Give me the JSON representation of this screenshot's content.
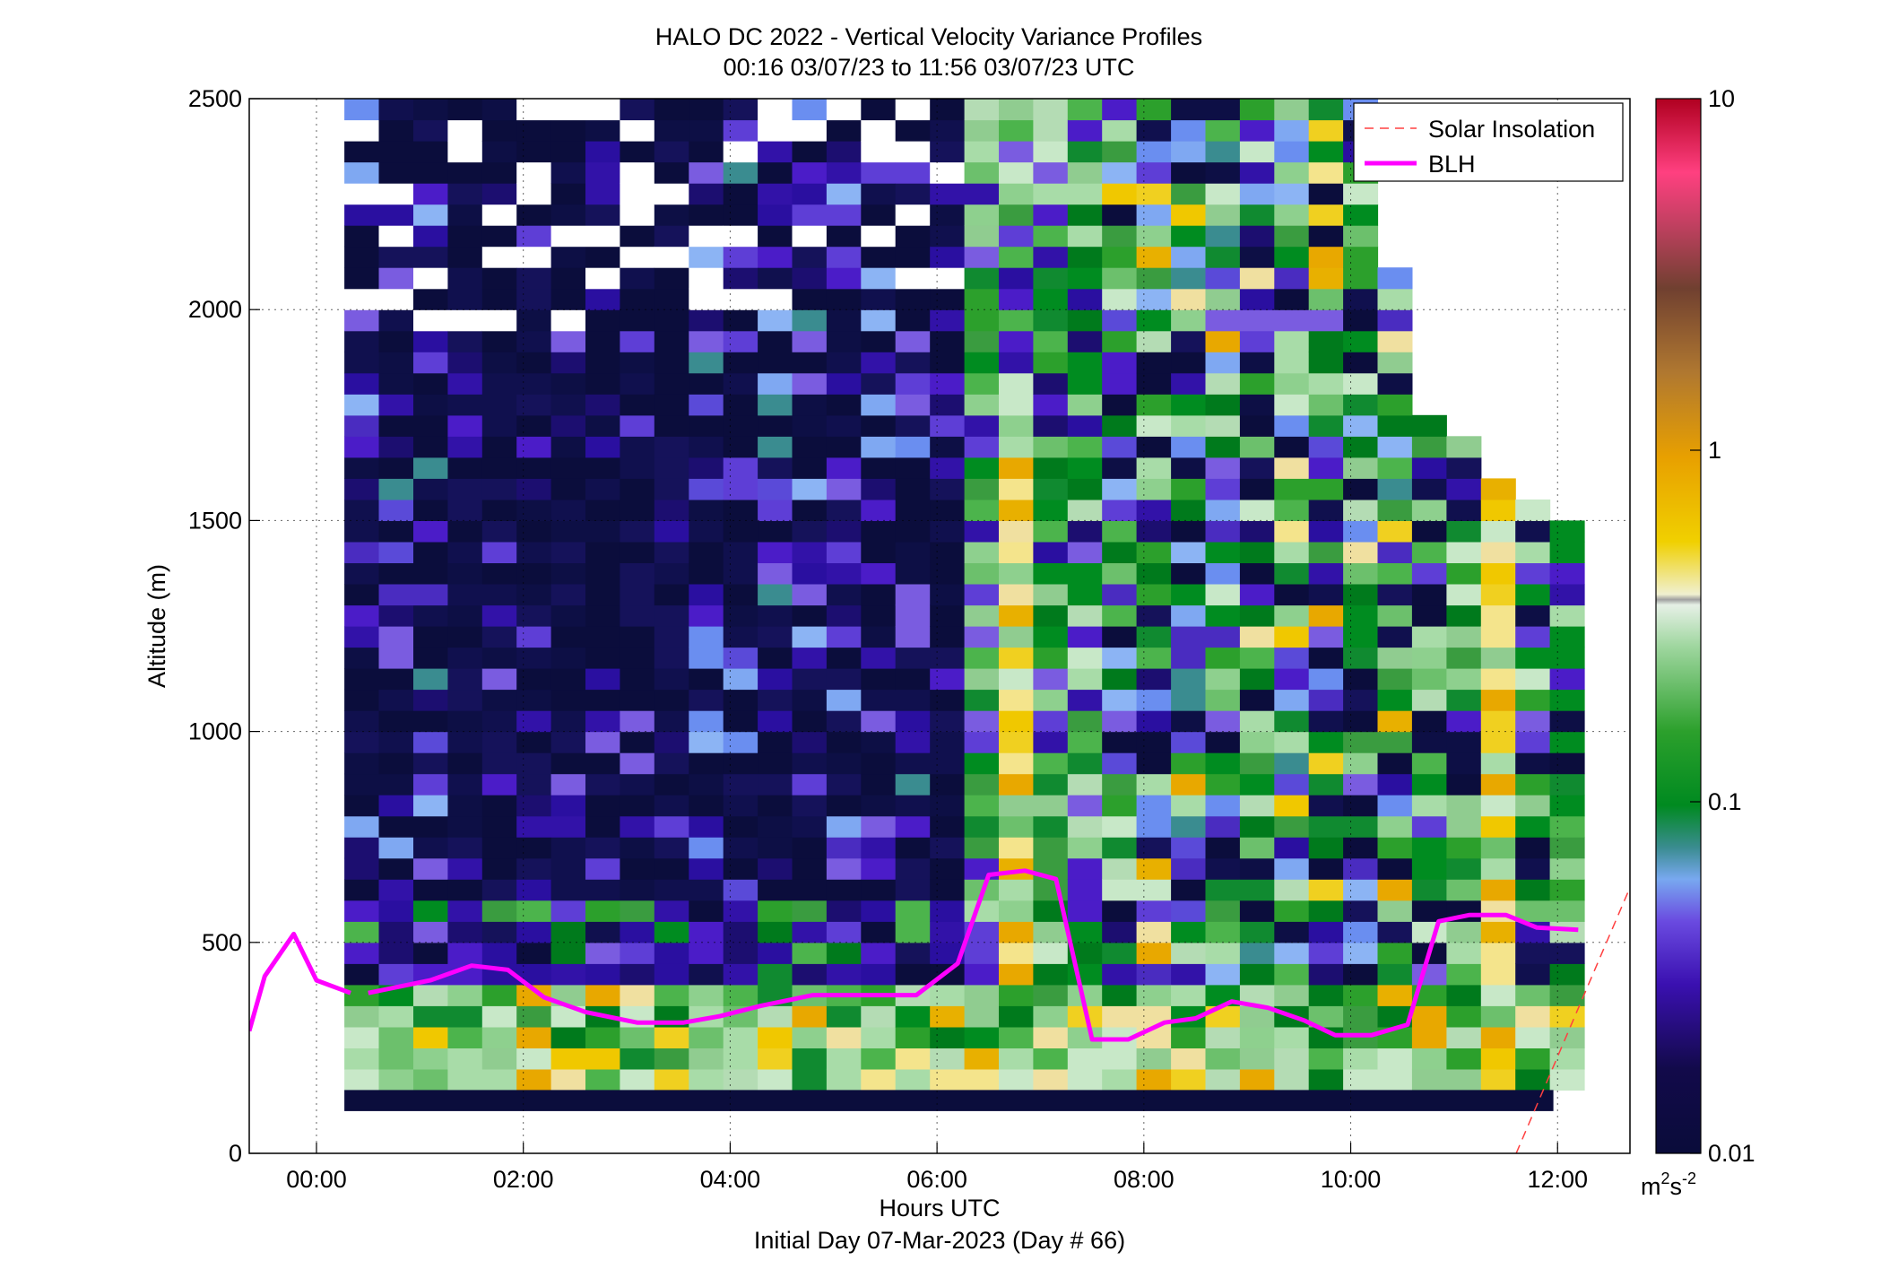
{
  "chart_data": {
    "type": "heatmap",
    "title": "HALO DC 2022 - Vertical Velocity Variance Profiles",
    "subtitle": "00:16 03/07/23 to 11:56 03/07/23  UTC",
    "xlabel": "Hours UTC",
    "xlabel2": "Initial Day 07-Mar-2023 (Day # 66)",
    "ylabel": "Altitude (m)",
    "xlim": [
      -0.65,
      12.7
    ],
    "ylim": [
      0,
      2500
    ],
    "x_ticks": [
      0,
      2,
      4,
      6,
      8,
      10,
      12
    ],
    "x_tick_labels": [
      "00:00",
      "02:00",
      "04:00",
      "06:00",
      "08:00",
      "10:00",
      "12:00"
    ],
    "y_ticks": [
      0,
      500,
      1000,
      1500,
      2000,
      2500
    ],
    "y_tick_labels": [
      "0",
      "500",
      "1000",
      "1500",
      "2000",
      "2500"
    ],
    "grid": true,
    "legend_position": "top-right",
    "colorbar": {
      "scale": "log",
      "min": 0.01,
      "max": 10,
      "tick_values": [
        0.01,
        0.1,
        1,
        10
      ],
      "tick_labels": [
        "0.01",
        "0.1",
        "1",
        "10"
      ],
      "unit_base": "m",
      "unit_sup1": "2",
      "unit_mid": "s",
      "unit_sup2": "-2"
    },
    "series": [
      {
        "name": "Solar Insolation",
        "style": "dashed",
        "color": "#ff4040",
        "x": [
          11.6,
          12.7
        ],
        "y": [
          0,
          630
        ]
      },
      {
        "name": "BLH",
        "style": "solid",
        "color": "#ff00ff",
        "segments": [
          {
            "x": [
              -0.65,
              -0.5,
              -0.22,
              0.0,
              0.33
            ],
            "y": [
              290,
              420,
              520,
              410,
              380
            ]
          },
          {
            "x": [
              0.5,
              1.1,
              1.5,
              1.85,
              2.2,
              2.6,
              3.1,
              3.55,
              3.9,
              4.3,
              4.8,
              5.4,
              5.8,
              6.2,
              6.5,
              6.85,
              7.15,
              7.5,
              7.85,
              8.2,
              8.5,
              8.85,
              9.2,
              9.55,
              9.85,
              10.2,
              10.55,
              10.85,
              11.15,
              11.5,
              11.8,
              12.2
            ],
            "y": [
              380,
              410,
              445,
              435,
              370,
              335,
              310,
              310,
              325,
              350,
              375,
              375,
              375,
              450,
              660,
              670,
              650,
              270,
              270,
              310,
              320,
              360,
              345,
              315,
              280,
              280,
              305,
              550,
              565,
              565,
              535,
              530
            ]
          }
        ]
      }
    ],
    "heatmap": {
      "time_step_hours": 0.333,
      "altitude_step_m": 50,
      "columns": [
        {
          "x": 0.5,
          "z_top": 2500,
          "low_level": "yellow-green"
        },
        {
          "x": 1.5,
          "z_top": 2500,
          "low_level": "green"
        },
        {
          "x": 2.5,
          "z_top": 2500,
          "low_level": "green"
        },
        {
          "x": 3.5,
          "z_top": 2500,
          "low_level": "light-green"
        },
        {
          "x": 4.5,
          "z_top": 2500,
          "low_level": "light-green"
        },
        {
          "x": 5.5,
          "z_top": 2500,
          "low_level": "light-green"
        },
        {
          "x": 6.5,
          "z_top": 2500,
          "low_level": "yellow"
        },
        {
          "x": 7.5,
          "z_top": 2500,
          "low_level": "green"
        },
        {
          "x": 8.5,
          "z_top": 2500,
          "low_level": "green"
        },
        {
          "x": 9.5,
          "z_top": 2500,
          "low_level": "light-green"
        },
        {
          "x": 10.5,
          "z_top": 1700,
          "low_level": "yellow"
        },
        {
          "x": 11.5,
          "z_top": 1500,
          "low_level": "orange"
        }
      ]
    }
  }
}
